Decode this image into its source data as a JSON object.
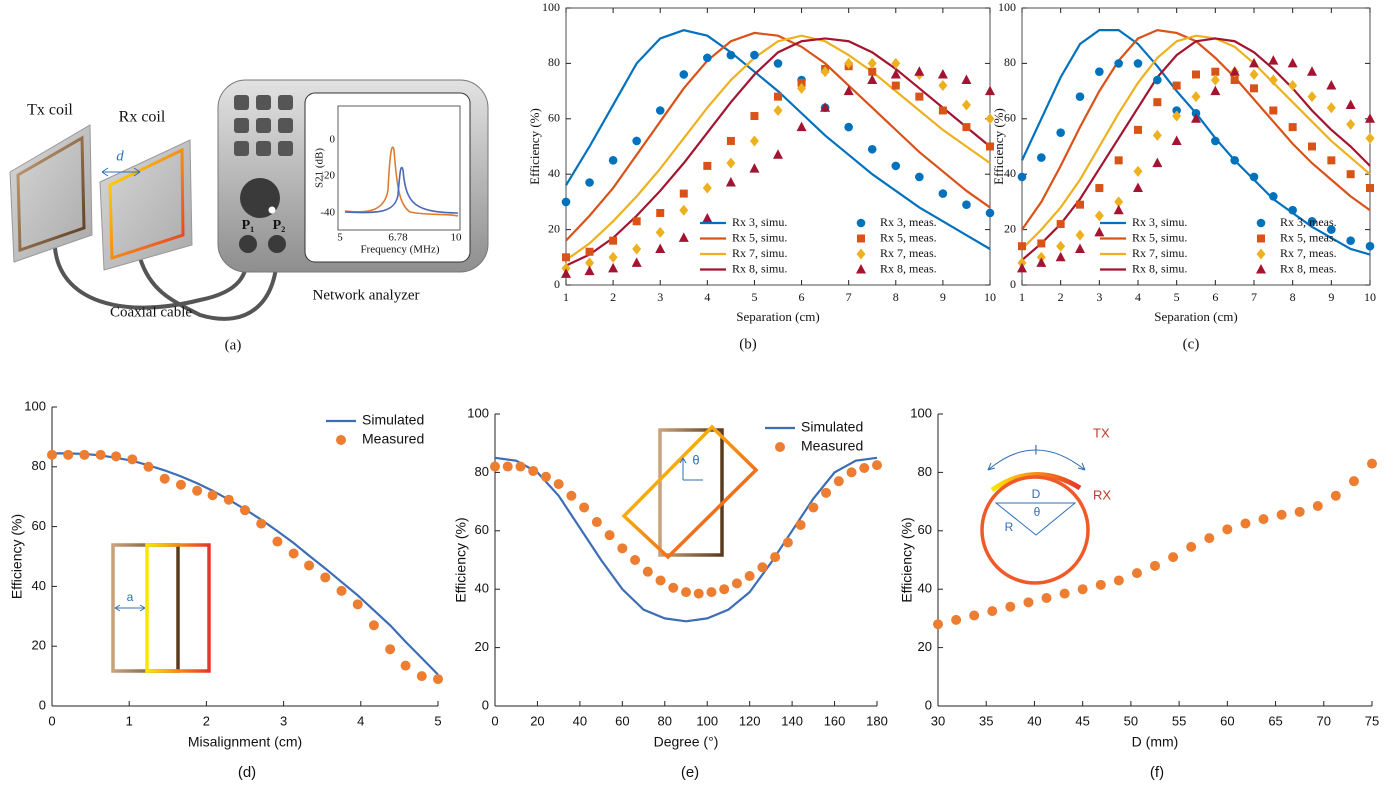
{
  "diagram": {
    "tx_coil": "Tx coil",
    "rx_coil": "Rx coil",
    "distance": "d",
    "cable": "Coaxial cable",
    "analyzer": "Network analyzer",
    "port1": "P₁",
    "port2": "P₂",
    "inset": {
      "y_label": "S21 (dB)",
      "x_label": "Frequency (MHz)",
      "yticks": [
        "0",
        "-20",
        "-40"
      ],
      "xticks": [
        "5",
        "6.78",
        "10"
      ]
    },
    "caption": "(a)"
  },
  "chart_data": [
    {
      "type": "line",
      "caption": "(b)",
      "x_label": "Separation (cm)",
      "y_label": "Efficiency (%)",
      "x": [
        1,
        1.5,
        2,
        2.5,
        3,
        3.5,
        4,
        4.5,
        5,
        5.5,
        6,
        6.5,
        7,
        7.5,
        8,
        8.5,
        9,
        9.5,
        10
      ],
      "xlim": [
        1,
        10
      ],
      "xticks": [
        1,
        2,
        3,
        4,
        5,
        6,
        7,
        8,
        9,
        10
      ],
      "ylim": [
        0,
        100
      ],
      "yticks": [
        0,
        20,
        40,
        60,
        80,
        100
      ],
      "legend": "lower right",
      "series": [
        {
          "name": "Rx 3, simu.",
          "color": "#0072bd",
          "style": "line",
          "values": [
            36,
            50,
            65,
            80,
            89,
            92,
            90,
            84,
            77,
            70,
            62,
            54,
            47,
            40,
            34,
            28,
            23,
            18,
            13
          ]
        },
        {
          "name": "Rx 5, simu.",
          "color": "#d95319",
          "style": "line",
          "values": [
            16,
            25,
            35,
            47,
            59,
            71,
            81,
            88,
            91,
            90,
            86,
            80,
            72,
            64,
            56,
            48,
            41,
            34,
            28
          ]
        },
        {
          "name": "Rx 7, simu.",
          "color": "#edb120",
          "style": "line",
          "values": [
            9,
            15,
            23,
            32,
            42,
            53,
            64,
            74,
            82,
            88,
            90,
            88,
            83,
            77,
            70,
            63,
            56,
            50,
            44
          ]
        },
        {
          "name": "Rx 8, simu.",
          "color": "#a2142f",
          "style": "line",
          "values": [
            7,
            11,
            17,
            25,
            34,
            44,
            55,
            66,
            76,
            84,
            88,
            89,
            88,
            84,
            78,
            71,
            64,
            57,
            50
          ]
        },
        {
          "name": "Rx 3, meas.",
          "color": "#0072bd",
          "marker": "circle",
          "values": [
            30,
            37,
            45,
            52,
            63,
            76,
            82,
            83,
            83,
            80,
            74,
            64,
            57,
            49,
            43,
            39,
            33,
            29,
            26
          ]
        },
        {
          "name": "Rx 5, meas.",
          "color": "#d95319",
          "marker": "square",
          "values": [
            10,
            12,
            16,
            23,
            26,
            33,
            43,
            52,
            61,
            68,
            73,
            78,
            79,
            77,
            72,
            68,
            63,
            57,
            50
          ]
        },
        {
          "name": "Rx 7, meas.",
          "color": "#edb120",
          "marker": "diamond",
          "values": [
            6,
            8,
            10,
            13,
            19,
            27,
            35,
            44,
            52,
            63,
            71,
            77,
            80,
            80,
            80,
            76,
            72,
            65,
            60
          ]
        },
        {
          "name": "Rx 8, meas.",
          "color": "#a2142f",
          "marker": "triangle",
          "values": [
            4,
            5,
            6,
            8,
            13,
            17,
            24,
            37,
            42,
            47,
            57,
            64,
            70,
            74,
            76,
            77,
            76,
            74,
            70
          ]
        }
      ]
    },
    {
      "type": "line",
      "caption": "(c)",
      "x_label": "Separation (cm)",
      "y_label": "Efficiency (%)",
      "x": [
        1,
        1.5,
        2,
        2.5,
        3,
        3.5,
        4,
        4.5,
        5,
        5.5,
        6,
        6.5,
        7,
        7.5,
        8,
        8.5,
        9,
        9.5,
        10
      ],
      "xlim": [
        1,
        10
      ],
      "xticks": [
        1,
        2,
        3,
        4,
        5,
        6,
        7,
        8,
        9,
        10
      ],
      "ylim": [
        0,
        100
      ],
      "yticks": [
        0,
        20,
        40,
        60,
        80,
        100
      ],
      "legend": "lower right",
      "series": [
        {
          "name": "Rx 3, simu.",
          "color": "#0072bd",
          "style": "line",
          "values": [
            45,
            60,
            75,
            87,
            92,
            92,
            87,
            79,
            70,
            62,
            53,
            45,
            38,
            31,
            26,
            21,
            17,
            13,
            11
          ]
        },
        {
          "name": "Rx 5, simu.",
          "color": "#d95319",
          "style": "line",
          "values": [
            20,
            30,
            43,
            57,
            70,
            81,
            89,
            92,
            91,
            88,
            82,
            75,
            67,
            59,
            51,
            44,
            38,
            32,
            27
          ]
        },
        {
          "name": "Rx 7, simu.",
          "color": "#edb120",
          "style": "line",
          "values": [
            13,
            20,
            28,
            38,
            50,
            62,
            73,
            82,
            88,
            90,
            89,
            86,
            80,
            73,
            66,
            59,
            52,
            46,
            40
          ]
        },
        {
          "name": "Rx 8, simu.",
          "color": "#a2142f",
          "style": "line",
          "values": [
            9,
            15,
            22,
            31,
            42,
            53,
            64,
            75,
            83,
            88,
            89,
            88,
            84,
            78,
            71,
            63,
            56,
            50,
            43
          ]
        },
        {
          "name": "Rx 3, meas.",
          "color": "#0072bd",
          "marker": "circle",
          "values": [
            39,
            46,
            55,
            68,
            77,
            80,
            80,
            74,
            63,
            62,
            52,
            45,
            39,
            32,
            27,
            23,
            20,
            16,
            14
          ]
        },
        {
          "name": "Rx 5, meas.",
          "color": "#d95319",
          "marker": "square",
          "values": [
            14,
            15,
            22,
            29,
            35,
            45,
            56,
            66,
            72,
            76,
            77,
            74,
            71,
            63,
            57,
            50,
            45,
            40,
            35
          ]
        },
        {
          "name": "Rx 7, meas.",
          "color": "#edb120",
          "marker": "diamond",
          "values": [
            8,
            10,
            14,
            18,
            25,
            30,
            41,
            54,
            61,
            68,
            74,
            77,
            76,
            74,
            72,
            68,
            64,
            58,
            53
          ]
        },
        {
          "name": "Rx 8, meas.",
          "color": "#a2142f",
          "marker": "triangle",
          "values": [
            6,
            8,
            10,
            13,
            19,
            27,
            35,
            44,
            52,
            60,
            70,
            77,
            80,
            81,
            80,
            77,
            72,
            65,
            60
          ]
        }
      ]
    },
    {
      "type": "line",
      "caption": "(d)",
      "x_label": "Misalignment (cm)",
      "y_label": "Efficiency (%)",
      "xlim": [
        0,
        5
      ],
      "xticks": [
        0,
        1,
        2,
        3,
        4,
        5
      ],
      "ylim": [
        0,
        100
      ],
      "yticks": [
        0,
        20,
        40,
        60,
        80,
        100
      ],
      "legend": "upper right",
      "annotations": [
        "a"
      ],
      "series": [
        {
          "name": "Simulated",
          "color": "#3d6db5",
          "style": "line",
          "x": [
            0,
            0.21,
            0.42,
            0.63,
            0.83,
            1.04,
            1.25,
            1.46,
            1.67,
            1.88,
            2.08,
            2.29,
            2.5,
            2.71,
            2.92,
            3.13,
            3.33,
            3.54,
            3.75,
            3.96,
            4.17,
            4.38,
            4.58,
            4.79,
            5
          ],
          "values": [
            84.5,
            84.5,
            84.3,
            83.8,
            83,
            82,
            80.5,
            78.8,
            76.8,
            74.5,
            72,
            69,
            65.8,
            62.3,
            58.5,
            54.5,
            50.3,
            46,
            41.5,
            37,
            32,
            27,
            21.5,
            16,
            10.5
          ]
        },
        {
          "name": "Measured",
          "color": "#ed7d31",
          "marker": "circle",
          "x": [
            0,
            0.21,
            0.42,
            0.63,
            0.83,
            1.04,
            1.25,
            1.46,
            1.67,
            1.88,
            2.08,
            2.29,
            2.5,
            2.71,
            2.92,
            3.13,
            3.33,
            3.54,
            3.75,
            3.96,
            4.17,
            4.38,
            4.58,
            4.79,
            5
          ],
          "values": [
            84,
            84,
            84,
            84,
            83.5,
            82.5,
            80,
            76,
            74,
            72,
            70.5,
            69,
            65.5,
            61,
            55,
            51,
            47,
            43,
            38.5,
            34,
            27,
            19,
            13.5,
            10,
            9
          ]
        }
      ]
    },
    {
      "type": "line",
      "caption": "(e)",
      "x_label": "Degree (°)",
      "y_label": "Efficiency (%)",
      "xlim": [
        0,
        180
      ],
      "xticks": [
        0,
        20,
        40,
        60,
        80,
        100,
        120,
        140,
        160,
        180
      ],
      "ylim": [
        0,
        100
      ],
      "yticks": [
        0,
        20,
        40,
        60,
        80,
        100
      ],
      "legend": "upper right",
      "annotations": [
        "θ"
      ],
      "series": [
        {
          "name": "Simulated",
          "color": "#3d6db5",
          "style": "line",
          "x": [
            0,
            10,
            20,
            30,
            40,
            50,
            60,
            70,
            80,
            90,
            100,
            110,
            120,
            130,
            140,
            150,
            160,
            170,
            180
          ],
          "values": [
            85,
            84,
            80,
            72,
            61,
            50,
            40,
            33,
            30,
            29,
            30,
            33,
            39,
            49,
            60,
            71,
            80,
            84,
            85
          ]
        },
        {
          "name": "Measured",
          "color": "#ed7d31",
          "marker": "circle",
          "x": [
            0,
            6,
            12,
            18,
            24,
            30,
            36,
            42,
            48,
            54,
            60,
            66,
            72,
            78,
            84,
            90,
            96,
            102,
            108,
            114,
            120,
            126,
            132,
            138,
            144,
            150,
            156,
            162,
            168,
            174,
            180
          ],
          "values": [
            82,
            82,
            82,
            80.5,
            78.5,
            76,
            72,
            68,
            63,
            58.5,
            54,
            50,
            46,
            43,
            40.5,
            39,
            38.5,
            39,
            40,
            42,
            44.5,
            47.5,
            51,
            56,
            62,
            68,
            73,
            77,
            80,
            81.5,
            82.5
          ]
        }
      ]
    },
    {
      "type": "scatter",
      "caption": "(f)",
      "x_label": "D (mm)",
      "y_label": "Efficiency (%)",
      "xlim": [
        30,
        75
      ],
      "xticks": [
        30,
        35,
        40,
        45,
        50,
        55,
        60,
        65,
        70,
        75
      ],
      "ylim": [
        0,
        100
      ],
      "yticks": [
        0,
        20,
        40,
        60,
        80,
        100
      ],
      "annotations": [
        "TX",
        "l",
        "RX",
        "D",
        "R",
        "θ"
      ],
      "series": [
        {
          "color": "#ed7d31",
          "marker": "circle",
          "x": [
            30,
            31.88,
            33.75,
            35.63,
            37.5,
            39.38,
            41.25,
            43.13,
            45,
            46.88,
            48.75,
            50.63,
            52.5,
            54.38,
            56.25,
            58.13,
            60,
            61.88,
            63.75,
            65.63,
            67.5,
            69.38,
            71.25,
            73.13,
            75
          ],
          "values": [
            28,
            29.5,
            31,
            32.5,
            34,
            35.5,
            37,
            38.5,
            40,
            41.5,
            43,
            45.5,
            48,
            51,
            54.5,
            57.5,
            60.5,
            62.5,
            64,
            65.5,
            66.5,
            68.5,
            72,
            77,
            83
          ]
        }
      ]
    }
  ]
}
